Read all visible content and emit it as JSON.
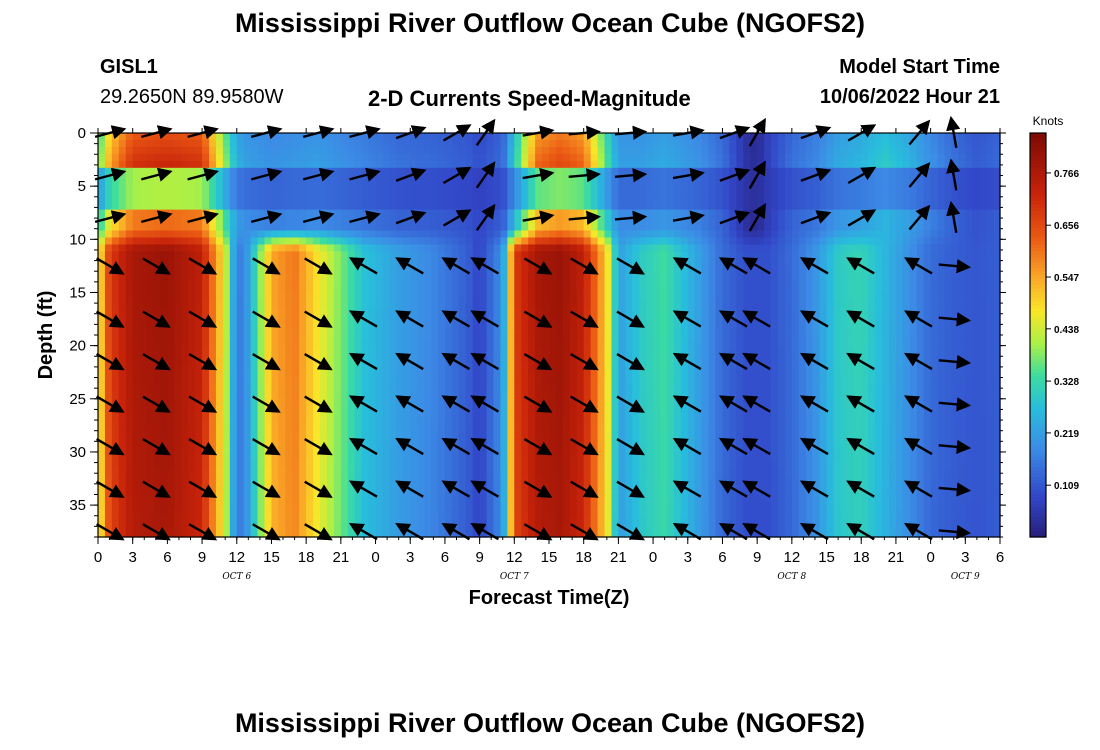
{
  "title": "Mississippi River Outflow Ocean Cube (NGOFS2)",
  "footer_title": "Mississippi River Outflow Ocean Cube (NGOFS2)",
  "station": {
    "id": "GISL1",
    "coords": "29.2650N  89.9580W"
  },
  "subtitle": "2-D Currents Speed-Magnitude",
  "model_start": {
    "label": "Model Start Time",
    "value": "10/06/2022 Hour 21"
  },
  "chart_data": {
    "type": "heatmap",
    "title": "2-D Currents Speed-Magnitude",
    "xlabel": "Forecast Time(Z)",
    "ylabel": "Depth (ft)",
    "x_tick_labels": [
      "0",
      "3",
      "6",
      "9",
      "12",
      "15",
      "18",
      "21",
      "0",
      "3",
      "6",
      "9",
      "12",
      "15",
      "18",
      "21",
      "0",
      "3",
      "6",
      "9",
      "12",
      "15",
      "18",
      "21",
      "0",
      "3",
      "6"
    ],
    "x_tick_hours": [
      0,
      3,
      6,
      9,
      12,
      15,
      18,
      21,
      24,
      27,
      30,
      33,
      36,
      39,
      42,
      45,
      48,
      51,
      54,
      57,
      60,
      63,
      66,
      69,
      72,
      75,
      78
    ],
    "x_range_hours": [
      0,
      78
    ],
    "date_labels": [
      {
        "text": "OCT 6",
        "hour": 12
      },
      {
        "text": "OCT 7",
        "hour": 36
      },
      {
        "text": "OCT 8",
        "hour": 60
      },
      {
        "text": "OCT 9",
        "hour": 75
      }
    ],
    "y_ticks": [
      0,
      5,
      10,
      15,
      20,
      25,
      30,
      35
    ],
    "y_range": [
      0,
      38
    ],
    "y_reversed": true,
    "colorbar": {
      "unit": "Knots",
      "ticks": [
        "0.766",
        "0.656",
        "0.547",
        "0.438",
        "0.328",
        "0.219",
        "0.109"
      ],
      "range": [
        0,
        0.85
      ],
      "colormap": "jet"
    },
    "speed_profile": {
      "description_hours": [
        0,
        1,
        3,
        6,
        9,
        11,
        12,
        13,
        15,
        17,
        19,
        21,
        23,
        26,
        29,
        32,
        33,
        35,
        36,
        38,
        40,
        42,
        44,
        45,
        47,
        49,
        52,
        54,
        56,
        57,
        58,
        60,
        62,
        64,
        66,
        68,
        70,
        72,
        74,
        76,
        78
      ],
      "upper_knots": [
        0.35,
        0.55,
        0.7,
        0.72,
        0.7,
        0.4,
        0.25,
        0.22,
        0.2,
        0.21,
        0.22,
        0.2,
        0.18,
        0.15,
        0.14,
        0.12,
        0.1,
        0.14,
        0.3,
        0.62,
        0.66,
        0.62,
        0.35,
        0.22,
        0.22,
        0.24,
        0.2,
        0.15,
        0.05,
        0.03,
        0.08,
        0.15,
        0.18,
        0.24,
        0.26,
        0.3,
        0.26,
        0.2,
        0.15,
        0.12,
        0.14
      ],
      "lower_knots": [
        0.45,
        0.68,
        0.78,
        0.8,
        0.74,
        0.45,
        0.15,
        0.22,
        0.55,
        0.6,
        0.48,
        0.38,
        0.28,
        0.22,
        0.18,
        0.12,
        0.08,
        0.2,
        0.68,
        0.78,
        0.8,
        0.74,
        0.5,
        0.22,
        0.3,
        0.34,
        0.22,
        0.14,
        0.1,
        0.1,
        0.1,
        0.14,
        0.2,
        0.3,
        0.32,
        0.26,
        0.2,
        0.14,
        0.12,
        0.11,
        0.12
      ]
    },
    "arrow_rows_depth_ft": [
      0,
      4,
      8,
      12.5,
      17.5,
      21.5,
      25.5,
      29.5,
      33.5,
      37.5
    ],
    "arrow_columns_hours": [
      1,
      5,
      9,
      14.5,
      19,
      23,
      27,
      31,
      33.5,
      38,
      42,
      46,
      51,
      55,
      57,
      62,
      66,
      71,
      74
    ],
    "arrow_direction_upper_deg": [
      15,
      15,
      15,
      15,
      15,
      15,
      20,
      30,
      55,
      10,
      5,
      5,
      10,
      20,
      60,
      20,
      30,
      50,
      100
    ],
    "arrow_direction_lower_deg": [
      -30,
      -30,
      -30,
      -30,
      -30,
      150,
      150,
      150,
      150,
      -30,
      -30,
      -30,
      150,
      150,
      150,
      150,
      150,
      150,
      -5
    ],
    "grid": false,
    "legend": "colorbar-right"
  }
}
